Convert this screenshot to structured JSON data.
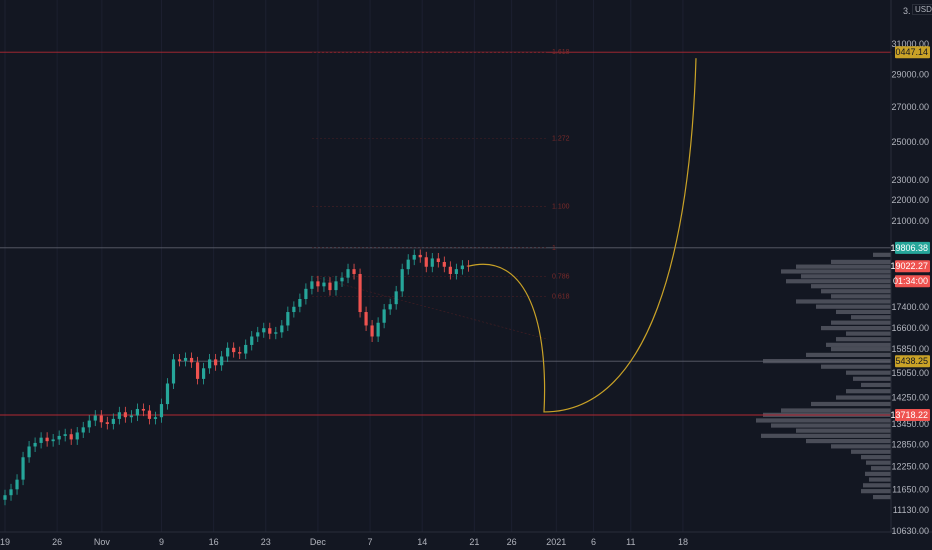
{
  "header": {
    "scale_label": "3.",
    "currency": "USDT"
  },
  "price_axis": {
    "ticks": [
      "31000.00",
      "29000.00",
      "27000.00",
      "25000.00",
      "23000.00",
      "22000.00",
      "21000.00",
      "17400.00",
      "16600.00",
      "15850.00",
      "15050.00",
      "14250.00",
      "13450.00",
      "12850.00",
      "12250.00",
      "11650.00",
      "11130.00",
      "10630.00"
    ],
    "badges": [
      {
        "label": "30447.14",
        "color": "#c9a227",
        "text_color": "#131722"
      },
      {
        "label": "19806.38",
        "color": "#26a69a",
        "text_color": "#ffffff"
      },
      {
        "label": "19022.27",
        "color": "#ef5350",
        "text_color": "#ffffff"
      },
      {
        "label": "01:34:00",
        "color": "#ef5350",
        "text_color": "#ffffff"
      },
      {
        "label": "15438.25",
        "color": "#c9a227",
        "text_color": "#131722"
      },
      {
        "label": "13718.22",
        "color": "#ef5350",
        "text_color": "#ffffff"
      }
    ]
  },
  "time_axis": {
    "ticks": [
      "19",
      "26",
      "Nov",
      "9",
      "16",
      "23",
      "Dec",
      "7",
      "14",
      "21",
      "26",
      "2021",
      "6",
      "11",
      "18"
    ]
  },
  "levels": {
    "top_resistance": 30447.14,
    "recent_high": 19806.38,
    "mid_support": 15438.25,
    "major_support": 13718.22
  },
  "fib_labels": [
    "1.618",
    "1.272",
    "1.100",
    "1",
    "0.786",
    "0.618"
  ],
  "colors": {
    "background": "#131722",
    "up": "#26a69a",
    "down": "#ef5350",
    "projection": "#c9a227",
    "level_red": "#b22833",
    "level_gray": "#5d606b",
    "volume_profile": "#5d606b"
  },
  "chart_data": {
    "type": "candlestick",
    "pair": "USDT",
    "timeframe_start": "Oct 19",
    "closes": [
      11500,
      11650,
      11900,
      12500,
      12800,
      12900,
      13050,
      12950,
      13000,
      13100,
      13150,
      13000,
      13200,
      13350,
      13550,
      13700,
      13500,
      13450,
      13600,
      13800,
      13650,
      13700,
      13900,
      13850,
      13600,
      13650,
      14050,
      14700,
      15500,
      15450,
      15550,
      15400,
      14850,
      15200,
      15500,
      15300,
      15600,
      15900,
      15750,
      15700,
      16000,
      16300,
      16450,
      16600,
      16400,
      16450,
      16700,
      17200,
      17400,
      17700,
      18100,
      18400,
      18200,
      18350,
      18050,
      18400,
      18550,
      18900,
      18700,
      17200,
      16700,
      16300,
      16800,
      17300,
      17500,
      18000,
      18900,
      19300,
      19500,
      19400,
      19000,
      19350,
      19200,
      19000,
      18700,
      18900,
      19050,
      19022.27
    ],
    "current_price": 19022.27,
    "countdown": "01:34:00",
    "projection_path": "dip to ~13718 around mid-December, then parabolic rise toward ~30447 by early January"
  }
}
